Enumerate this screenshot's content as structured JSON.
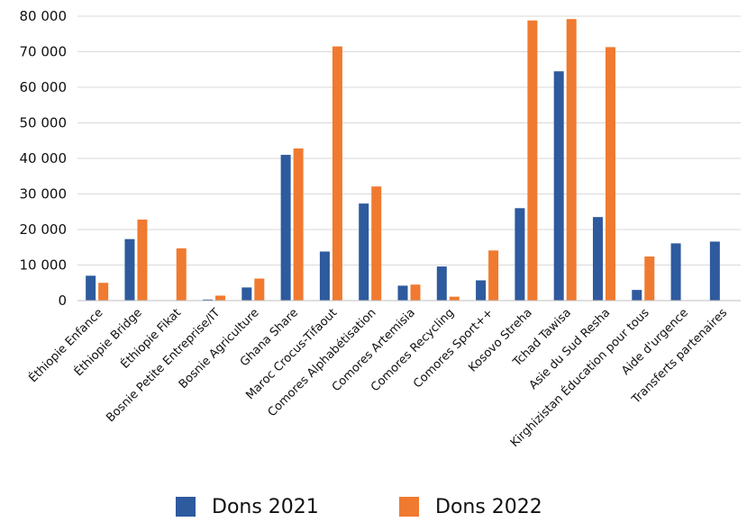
{
  "chart_data": {
    "type": "bar",
    "title": "",
    "xlabel": "",
    "ylabel": "",
    "ylim": [
      0,
      80000
    ],
    "yticks": [
      "0",
      "10 000",
      "20 000",
      "30 000",
      "40 000",
      "50 000",
      "60 000",
      "70 000",
      "80 000"
    ],
    "grid": "horizontal",
    "legend_position": "bottom",
    "categories": [
      "Éthiopie Enfance",
      "Éthiopie Bridge",
      "Éthiopie Fikat",
      "Bosnie Petite Entreprise/IT",
      "Bosnie Agriculture",
      "Ghana Share",
      "Maroc Crocus-Tifaout",
      "Comores Alphabétisation",
      "Comores Artemisia",
      "Comores Recycling",
      "Comores Sport++",
      "Kosovo Streha",
      "Tchad Tawisa",
      "Asie du Sud Resha",
      "Kirghizistan Éducation pour tous",
      "Aide d'urgence",
      "Transferts partenaires"
    ],
    "series": [
      {
        "name": "Dons 2021",
        "color": "#2e5a9e",
        "values": [
          7000,
          17300,
          0,
          300,
          3700,
          41000,
          13800,
          27300,
          4200,
          9600,
          5700,
          26000,
          64500,
          23500,
          3000,
          16100,
          16600
        ]
      },
      {
        "name": "Dons 2022",
        "color": "#f07a2f",
        "values": [
          5000,
          22800,
          14700,
          1400,
          6200,
          42800,
          71500,
          32100,
          4500,
          1100,
          14100,
          78800,
          79200,
          71300,
          12400,
          0,
          0
        ]
      }
    ]
  }
}
